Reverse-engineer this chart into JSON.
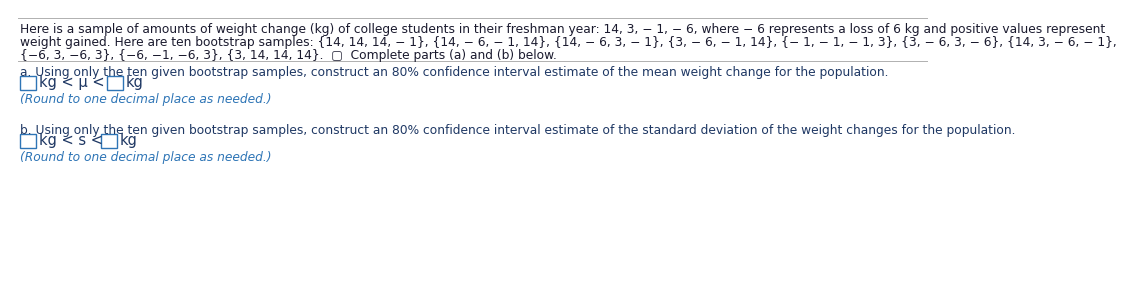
{
  "bg_color": "#ffffff",
  "text_color": "#1a1a2e",
  "dark_blue": "#1f3864",
  "answer_color": "#1f3864",
  "round_note_color": "#2e75b6",
  "box_edge_color": "#2e75b6",
  "separator_color": "#b0b0b0",
  "header_line1": "Here is a sample of amounts of weight change (kg) of college students in their freshman year: 14, 3, − 1, − 6, where − 6 represents a loss of 6 kg and positive values represent",
  "header_line2": "weight gained. Here are ten bootstrap samples: {14, 14, 14, − 1}, {14, − 6, − 1, 14}, {14, − 6, 3, − 1}, {3, − 6, − 1, 14}, {− 1, − 1, − 1, 3}, {3, − 6, 3, − 6}, {14, 3, − 6, − 1},",
  "header_line3": "{−6, 3, −6, 3}, {−6, −1, −6, 3}, {3, 14, 14, 14}.",
  "complete_parts": "Complete parts (a) and (b) below.",
  "part_a_question": "a. Using only the ten given bootstrap samples, construct an 80% confidence interval estimate of the mean weight change for the population.",
  "part_b_question": "b. Using only the ten given bootstrap samples, construct an 80% confidence interval estimate of the standard deviation of the weight changes for the population.",
  "kg_label": "kg",
  "lt_mu_lt": "kg < μ <",
  "lt_s_lt": "kg < s <",
  "round_note": "(Round to one decimal place as needed.)",
  "font_size_body": 8.8,
  "font_size_answer": 10.5,
  "font_size_round": 8.8
}
